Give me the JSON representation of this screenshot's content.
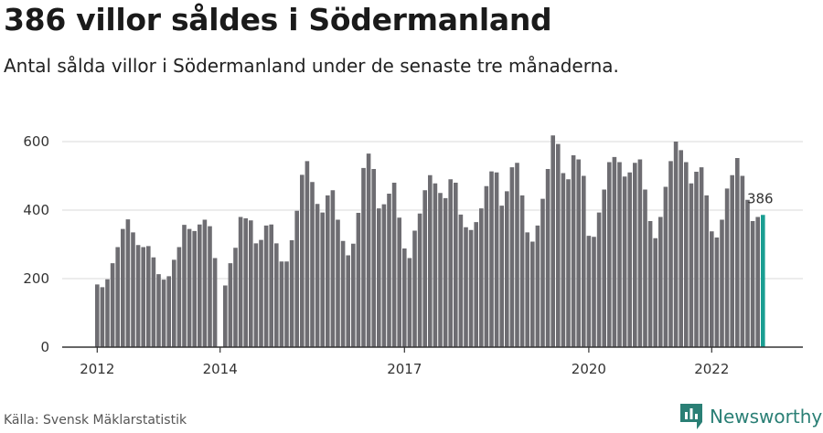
{
  "header": {
    "title": "386 villor såldes i Södermanland",
    "subtitle": "Antal sålda villor i Södermanland under de senaste tre månaderna."
  },
  "footer": {
    "source": "Källa: Svensk Mäklarstatistik",
    "brand": "Newsworthy"
  },
  "colors": {
    "bar": "#6e6d72",
    "highlight": "#1a9e92",
    "grid": "#d8d8d8",
    "axis": "#333333",
    "brand": "#2a7f75"
  },
  "chart_data": {
    "type": "bar",
    "ylim": [
      0,
      640
    ],
    "yticks": [
      0,
      200,
      400,
      600
    ],
    "xticks": [
      {
        "label": "2012",
        "index": 0
      },
      {
        "label": "2014",
        "index": 24
      },
      {
        "label": "2017",
        "index": 60
      },
      {
        "label": "2020",
        "index": 96
      },
      {
        "label": "2022",
        "index": 120
      }
    ],
    "grid": true,
    "highlight_label": "386",
    "values": [
      183,
      175,
      198,
      245,
      292,
      345,
      373,
      335,
      298,
      292,
      295,
      262,
      213,
      197,
      207,
      255,
      292,
      357,
      345,
      339,
      358,
      372,
      353,
      260,
      0,
      180,
      245,
      290,
      380,
      376,
      370,
      303,
      313,
      355,
      358,
      303,
      250,
      250,
      312,
      398,
      503,
      543,
      482,
      418,
      393,
      443,
      458,
      372,
      310,
      268,
      302,
      392,
      523,
      565,
      520,
      405,
      417,
      448,
      480,
      378,
      288,
      260,
      340,
      390,
      458,
      502,
      478,
      450,
      435,
      490,
      480,
      387,
      350,
      342,
      365,
      405,
      470,
      513,
      510,
      413,
      455,
      525,
      538,
      443,
      335,
      308,
      355,
      433,
      520,
      618,
      593,
      508,
      490,
      560,
      548,
      500,
      325,
      322,
      393,
      460,
      540,
      555,
      540,
      498,
      510,
      538,
      548,
      460,
      368,
      318,
      380,
      468,
      543,
      600,
      575,
      540,
      478,
      512,
      525,
      443,
      338,
      320,
      372,
      463,
      502,
      552,
      500,
      430,
      368,
      380,
      386
    ]
  }
}
